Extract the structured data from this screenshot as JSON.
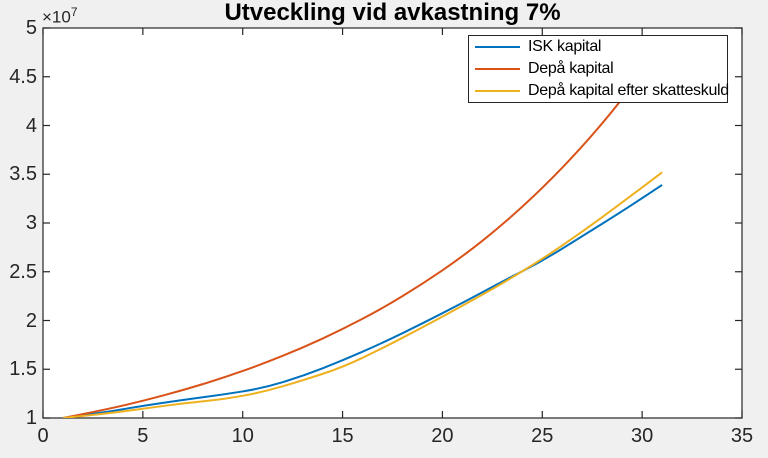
{
  "figure": {
    "background_color": "#f0f0f0",
    "plot_background_color": "#ffffff",
    "axis_color": "#262626",
    "title_color": "#000000"
  },
  "chart_data": {
    "type": "line",
    "title": "Utveckling vid avkastning 7%",
    "xlabel": "",
    "ylabel": "",
    "grid": false,
    "legend_position": "upper right inside",
    "xlim": [
      0,
      35
    ],
    "ylim_displayed": [
      1,
      5
    ],
    "y_value_multiplier": 10000000,
    "y_exponent_base": "×10",
    "y_exponent_power": "7",
    "x_ticks": [
      0,
      5,
      10,
      15,
      20,
      25,
      30,
      35
    ],
    "x_tick_labels": [
      "0",
      "5",
      "10",
      "15",
      "20",
      "25",
      "30",
      "35"
    ],
    "y_ticks": [
      1,
      1.5,
      2,
      2.5,
      3,
      3.5,
      4,
      4.5,
      5
    ],
    "y_tick_labels": [
      "1",
      "1.5",
      "2",
      "2.5",
      "3",
      "3.5",
      "4",
      "4.5",
      "5"
    ],
    "x": [
      1,
      3,
      5,
      7,
      9,
      11,
      13,
      15,
      17,
      19,
      21,
      23,
      25,
      27,
      29,
      31
    ],
    "series": [
      {
        "name": "ISK kapital",
        "color": "#0072BD",
        "values": [
          1.0,
          1.055,
          1.125,
          1.185,
          1.24,
          1.305,
          1.43,
          1.59,
          1.77,
          1.97,
          2.18,
          2.4,
          2.61,
          2.865,
          3.12,
          3.39
        ]
      },
      {
        "name": "Depå kapital",
        "color": "#D95319",
        "values": [
          1.0,
          1.08,
          1.175,
          1.285,
          1.41,
          1.555,
          1.72,
          1.91,
          2.125,
          2.375,
          2.655,
          2.98,
          3.355,
          3.78,
          4.265,
          4.825
        ]
      },
      {
        "name": "Depå kapital efter skatteskuld",
        "color": "#EDB120",
        "values": [
          1.0,
          1.04,
          1.095,
          1.15,
          1.19,
          1.265,
          1.385,
          1.52,
          1.715,
          1.93,
          2.15,
          2.38,
          2.63,
          2.91,
          3.21,
          3.52
        ]
      }
    ],
    "legend_order": [
      "ISK kapital",
      "Depå kapital",
      "Depå kapital efter skatteskuld"
    ]
  }
}
